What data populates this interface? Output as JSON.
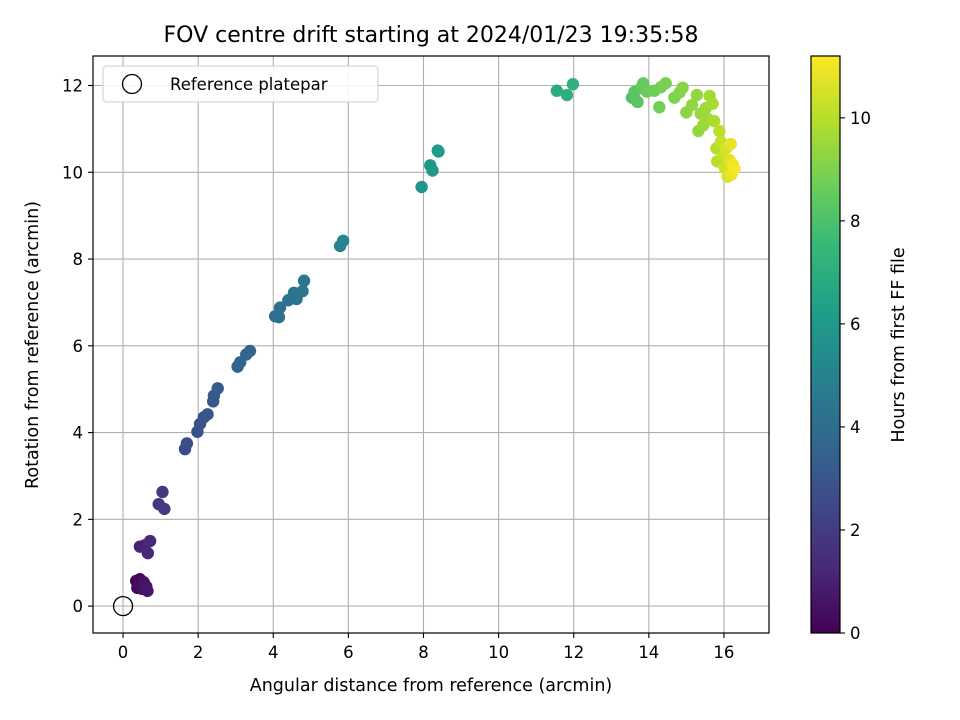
{
  "chart_data": {
    "type": "scatter",
    "title": "FOV centre drift starting at 2024/01/23 19:35:58",
    "xlabel": "Angular distance from reference (arcmin)",
    "ylabel": "Rotation from reference (arcmin)",
    "xlim": [
      -0.8,
      17.2
    ],
    "ylim": [
      -0.62,
      12.68
    ],
    "xticks": [
      "0",
      "2",
      "4",
      "6",
      "8",
      "10",
      "12",
      "14",
      "16"
    ],
    "yticks": [
      "0",
      "2",
      "4",
      "6",
      "8",
      "10",
      "12"
    ],
    "grid": true,
    "legend": {
      "placement": "top-left",
      "entries": [
        "Reference platepar"
      ]
    },
    "reference_point": {
      "name": "Reference platepar",
      "x": 0,
      "y": 0,
      "marker": "open-circle"
    },
    "colorbar": {
      "label": "Hours from first FF file",
      "range": [
        0,
        11.2
      ],
      "ticks": [
        "0",
        "2",
        "4",
        "6",
        "8",
        "10"
      ],
      "colormap": "viridis"
    },
    "colormap_stops": [
      "#440154",
      "#482878",
      "#3e4989",
      "#31688e",
      "#26828e",
      "#1f9e89",
      "#35b779",
      "#6ece58",
      "#b5de2b",
      "#fde725"
    ],
    "points": [
      {
        "x": 0.35,
        "y": 0.58,
        "h": 0.1
      },
      {
        "x": 0.45,
        "y": 0.62,
        "h": 0.2
      },
      {
        "x": 0.38,
        "y": 0.42,
        "h": 0.3
      },
      {
        "x": 0.5,
        "y": 0.4,
        "h": 0.4
      },
      {
        "x": 0.55,
        "y": 0.55,
        "h": 0.5
      },
      {
        "x": 0.62,
        "y": 0.45,
        "h": 0.6
      },
      {
        "x": 0.65,
        "y": 0.35,
        "h": 0.7
      },
      {
        "x": 0.45,
        "y": 1.37,
        "h": 1.0
      },
      {
        "x": 0.58,
        "y": 1.4,
        "h": 1.1
      },
      {
        "x": 0.66,
        "y": 1.22,
        "h": 1.2
      },
      {
        "x": 0.72,
        "y": 1.5,
        "h": 1.3
      },
      {
        "x": 0.95,
        "y": 2.35,
        "h": 1.8
      },
      {
        "x": 1.05,
        "y": 2.63,
        "h": 1.9
      },
      {
        "x": 1.1,
        "y": 2.24,
        "h": 2.0
      },
      {
        "x": 1.65,
        "y": 3.62,
        "h": 2.5
      },
      {
        "x": 1.7,
        "y": 3.75,
        "h": 2.6
      },
      {
        "x": 1.98,
        "y": 4.02,
        "h": 2.7
      },
      {
        "x": 2.05,
        "y": 4.2,
        "h": 2.8
      },
      {
        "x": 2.15,
        "y": 4.35,
        "h": 2.9
      },
      {
        "x": 2.25,
        "y": 4.42,
        "h": 3.0
      },
      {
        "x": 2.4,
        "y": 4.72,
        "h": 3.1
      },
      {
        "x": 2.42,
        "y": 4.85,
        "h": 3.15
      },
      {
        "x": 2.52,
        "y": 5.02,
        "h": 3.2
      },
      {
        "x": 3.05,
        "y": 5.52,
        "h": 3.5
      },
      {
        "x": 3.12,
        "y": 5.62,
        "h": 3.55
      },
      {
        "x": 3.28,
        "y": 5.8,
        "h": 3.6
      },
      {
        "x": 3.38,
        "y": 5.88,
        "h": 3.65
      },
      {
        "x": 4.05,
        "y": 6.68,
        "h": 4.0
      },
      {
        "x": 4.15,
        "y": 6.66,
        "h": 4.05
      },
      {
        "x": 4.18,
        "y": 6.88,
        "h": 4.1
      },
      {
        "x": 4.4,
        "y": 7.05,
        "h": 4.2
      },
      {
        "x": 4.55,
        "y": 7.22,
        "h": 4.25
      },
      {
        "x": 4.62,
        "y": 7.08,
        "h": 4.3
      },
      {
        "x": 4.78,
        "y": 7.26,
        "h": 4.35
      },
      {
        "x": 4.82,
        "y": 7.5,
        "h": 4.4
      },
      {
        "x": 5.78,
        "y": 8.3,
        "h": 5.0
      },
      {
        "x": 5.86,
        "y": 8.42,
        "h": 5.1
      },
      {
        "x": 7.95,
        "y": 9.66,
        "h": 5.8
      },
      {
        "x": 8.18,
        "y": 10.16,
        "h": 5.9
      },
      {
        "x": 8.24,
        "y": 10.04,
        "h": 5.95
      },
      {
        "x": 8.38,
        "y": 10.5,
        "h": 6.0
      },
      {
        "x": 8.4,
        "y": 10.48,
        "h": 6.05
      },
      {
        "x": 11.55,
        "y": 11.88,
        "h": 6.9
      },
      {
        "x": 11.82,
        "y": 11.78,
        "h": 7.0
      },
      {
        "x": 11.98,
        "y": 12.03,
        "h": 7.1
      },
      {
        "x": 13.55,
        "y": 11.72,
        "h": 8.1
      },
      {
        "x": 13.62,
        "y": 11.85,
        "h": 8.2
      },
      {
        "x": 13.7,
        "y": 11.62,
        "h": 8.3
      },
      {
        "x": 13.8,
        "y": 11.95,
        "h": 8.4
      },
      {
        "x": 13.85,
        "y": 12.05,
        "h": 8.5
      },
      {
        "x": 13.95,
        "y": 11.86,
        "h": 8.6
      },
      {
        "x": 14.15,
        "y": 11.88,
        "h": 8.7
      },
      {
        "x": 14.28,
        "y": 11.5,
        "h": 8.75
      },
      {
        "x": 14.32,
        "y": 11.96,
        "h": 8.8
      },
      {
        "x": 14.45,
        "y": 12.05,
        "h": 8.9
      },
      {
        "x": 14.68,
        "y": 11.72,
        "h": 9.0
      },
      {
        "x": 14.82,
        "y": 11.84,
        "h": 9.1
      },
      {
        "x": 14.9,
        "y": 11.95,
        "h": 9.15
      },
      {
        "x": 15.0,
        "y": 11.38,
        "h": 9.2
      },
      {
        "x": 15.15,
        "y": 11.55,
        "h": 9.3
      },
      {
        "x": 15.28,
        "y": 11.78,
        "h": 9.35
      },
      {
        "x": 15.32,
        "y": 10.95,
        "h": 9.4
      },
      {
        "x": 15.38,
        "y": 11.35,
        "h": 9.45
      },
      {
        "x": 15.45,
        "y": 11.08,
        "h": 9.5
      },
      {
        "x": 15.52,
        "y": 11.48,
        "h": 9.55
      },
      {
        "x": 15.58,
        "y": 11.22,
        "h": 9.6
      },
      {
        "x": 15.62,
        "y": 11.76,
        "h": 9.65
      },
      {
        "x": 15.7,
        "y": 11.58,
        "h": 9.7
      },
      {
        "x": 15.74,
        "y": 11.18,
        "h": 9.8
      },
      {
        "x": 15.8,
        "y": 10.55,
        "h": 9.9
      },
      {
        "x": 15.82,
        "y": 10.25,
        "h": 10.0
      },
      {
        "x": 15.88,
        "y": 10.95,
        "h": 10.1
      },
      {
        "x": 15.92,
        "y": 10.7,
        "h": 10.2
      },
      {
        "x": 15.98,
        "y": 10.38,
        "h": 10.3
      },
      {
        "x": 16.02,
        "y": 10.1,
        "h": 10.4
      },
      {
        "x": 16.06,
        "y": 10.55,
        "h": 10.5
      },
      {
        "x": 16.1,
        "y": 9.9,
        "h": 10.6
      },
      {
        "x": 16.15,
        "y": 10.28,
        "h": 10.7
      },
      {
        "x": 16.18,
        "y": 10.65,
        "h": 10.8
      },
      {
        "x": 16.2,
        "y": 9.95,
        "h": 10.9
      },
      {
        "x": 16.24,
        "y": 10.18,
        "h": 11.0
      },
      {
        "x": 16.28,
        "y": 10.08,
        "h": 11.1
      }
    ]
  }
}
